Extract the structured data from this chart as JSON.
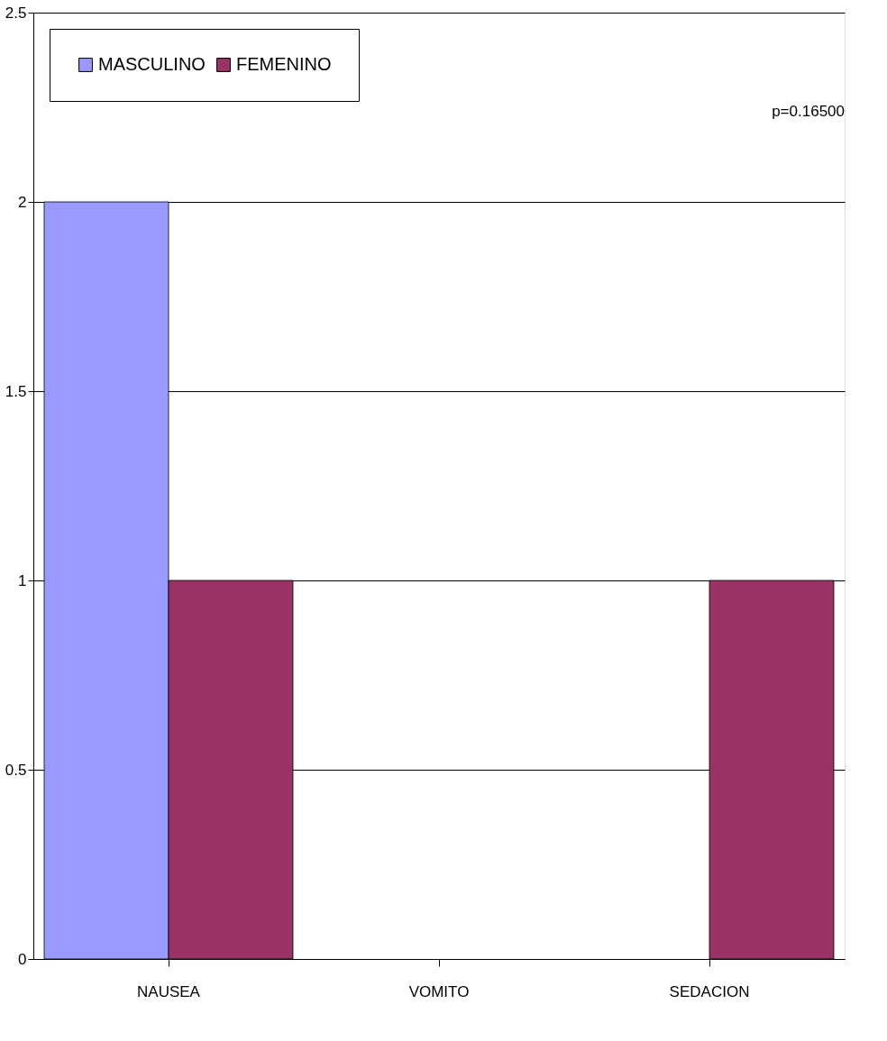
{
  "chart_data": {
    "type": "bar",
    "categories": [
      "NAUSEA",
      "VOMITO",
      "SEDACION"
    ],
    "series": [
      {
        "name": "MASCULINO",
        "color": "#9999ff",
        "values": [
          2,
          0,
          0
        ]
      },
      {
        "name": "FEMENINO",
        "color": "#993366",
        "values": [
          1,
          0,
          1
        ]
      }
    ],
    "ylim": [
      0,
      2.5
    ],
    "yticks": [
      0,
      0.5,
      1,
      1.5,
      2,
      2.5
    ],
    "grid": "y",
    "legend": "top left",
    "annotations": [
      "p=0.16500"
    ]
  }
}
